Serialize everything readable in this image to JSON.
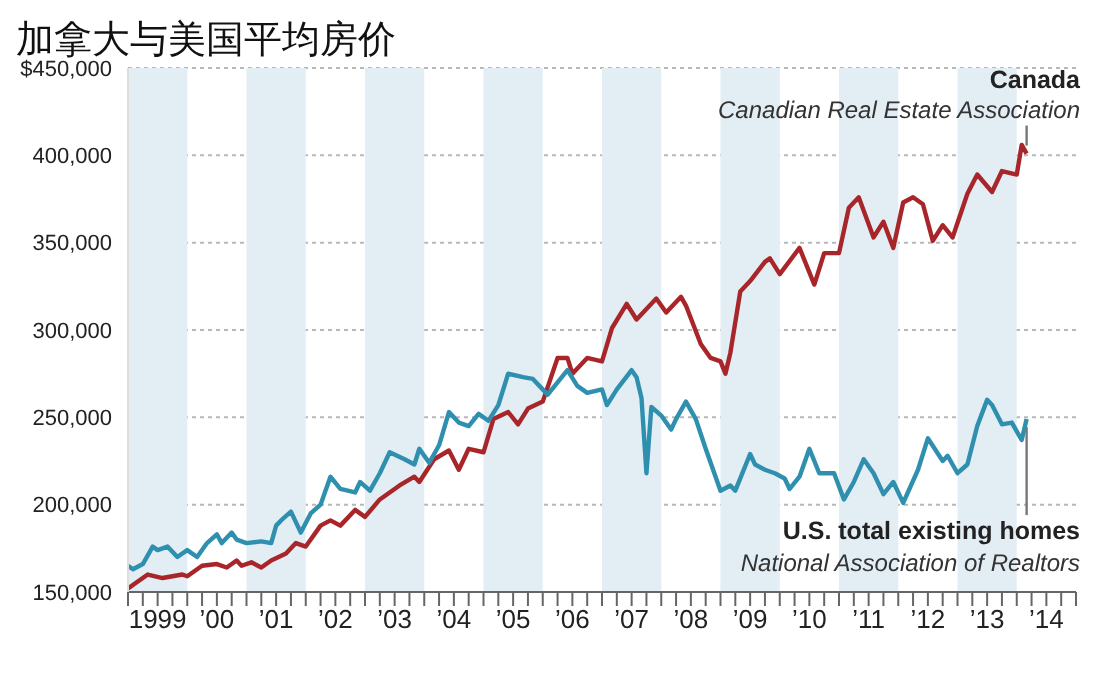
{
  "chart_data": {
    "type": "line",
    "title": "加拿大与美国平均房价",
    "xlim": [
      "1999",
      "2015"
    ],
    "xticks": [
      {
        "value": "1999",
        "label": null
      },
      {
        "value": "1999-04",
        "label": null
      },
      {
        "value": "1999-07",
        "label": "1999"
      },
      {
        "value": "1999-10",
        "label": null
      },
      {
        "value": "2000",
        "label": null
      },
      {
        "value": "2000-04",
        "label": null
      },
      {
        "value": "2000-07",
        "label": "’00"
      },
      {
        "value": "2000-10",
        "label": null
      },
      {
        "value": "2001",
        "label": null
      },
      {
        "value": "2001-04",
        "label": null
      },
      {
        "value": "2001-07",
        "label": "’01"
      },
      {
        "value": "2001-10",
        "label": null
      },
      {
        "value": "2002",
        "label": null
      },
      {
        "value": "2002-04",
        "label": null
      },
      {
        "value": "2002-07",
        "label": "’02"
      },
      {
        "value": "2002-10",
        "label": null
      },
      {
        "value": "2003",
        "label": null
      },
      {
        "value": "2003-04",
        "label": null
      },
      {
        "value": "2003-07",
        "label": "’03"
      },
      {
        "value": "2003-10",
        "label": null
      },
      {
        "value": "2004",
        "label": null
      },
      {
        "value": "2004-04",
        "label": null
      },
      {
        "value": "2004-07",
        "label": "’04"
      },
      {
        "value": "2004-10",
        "label": null
      },
      {
        "value": "2005",
        "label": null
      },
      {
        "value": "2005-04",
        "label": null
      },
      {
        "value": "2005-07",
        "label": "’05"
      },
      {
        "value": "2005-10",
        "label": null
      },
      {
        "value": "2006",
        "label": null
      },
      {
        "value": "2006-04",
        "label": null
      },
      {
        "value": "2006-07",
        "label": "’06"
      },
      {
        "value": "2006-10",
        "label": null
      },
      {
        "value": "2007",
        "label": null
      },
      {
        "value": "2007-04",
        "label": null
      },
      {
        "value": "2007-07",
        "label": "’07"
      },
      {
        "value": "2007-10",
        "label": null
      },
      {
        "value": "2008",
        "label": null
      },
      {
        "value": "2008-04",
        "label": null
      },
      {
        "value": "2008-07",
        "label": "’08"
      },
      {
        "value": "2008-10",
        "label": null
      },
      {
        "value": "2009",
        "label": null
      },
      {
        "value": "2009-04",
        "label": null
      },
      {
        "value": "2009-07",
        "label": "’09"
      },
      {
        "value": "2009-10",
        "label": null
      },
      {
        "value": "2010",
        "label": null
      },
      {
        "value": "2010-04",
        "label": null
      },
      {
        "value": "2010-07",
        "label": "’10"
      },
      {
        "value": "2010-10",
        "label": null
      },
      {
        "value": "2011",
        "label": null
      },
      {
        "value": "2011-04",
        "label": null
      },
      {
        "value": "2011-07",
        "label": "’11"
      },
      {
        "value": "2011-10",
        "label": null
      },
      {
        "value": "2012",
        "label": null
      },
      {
        "value": "2012-04",
        "label": null
      },
      {
        "value": "2012-07",
        "label": "’12"
      },
      {
        "value": "2012-10",
        "label": null
      },
      {
        "value": "2013",
        "label": null
      },
      {
        "value": "2013-04",
        "label": null
      },
      {
        "value": "2013-07",
        "label": "’13"
      },
      {
        "value": "2013-10",
        "label": null
      },
      {
        "value": "2014",
        "label": null
      },
      {
        "value": "2014-04",
        "label": null
      },
      {
        "value": "2014-07",
        "label": "’14"
      },
      {
        "value": "2014-10",
        "label": null
      },
      {
        "value": "2015",
        "label": null
      }
    ],
    "ylim": [
      150000,
      450000
    ],
    "yticks": [
      {
        "value": 150000,
        "label": "150,000"
      },
      {
        "value": 200000,
        "label": "200,000"
      },
      {
        "value": 250000,
        "label": "250,000"
      },
      {
        "value": 300000,
        "label": "300,000"
      },
      {
        "value": 350000,
        "label": "350,000"
      },
      {
        "value": 400000,
        "label": "400,000"
      },
      {
        "value": 450000,
        "label": "$450,000"
      }
    ],
    "grid": "y",
    "bands": [
      {
        "axis": "x",
        "from": "1999",
        "to": "2000",
        "color": "#e3edf4"
      },
      {
        "axis": "x",
        "from": "2001",
        "to": "2002",
        "color": "#e3edf4"
      },
      {
        "axis": "x",
        "from": "2003",
        "to": "2004",
        "color": "#e3edf4"
      },
      {
        "axis": "x",
        "from": "2005",
        "to": "2006",
        "color": "#e3edf4"
      },
      {
        "axis": "x",
        "from": "2007",
        "to": "2008",
        "color": "#e3edf4"
      },
      {
        "axis": "x",
        "from": "2009",
        "to": "2010",
        "color": "#e3edf4"
      },
      {
        "axis": "x",
        "from": "2011",
        "to": "2012",
        "color": "#e3edf4"
      },
      {
        "axis": "x",
        "from": "2013",
        "to": "2014",
        "color": "#e3edf4"
      }
    ],
    "annotations": [
      "Canadian Real Estate Association",
      "National Association of Realtors"
    ],
    "series": [
      {
        "name": "Canada",
        "color": "#a8262a",
        "x": [
          "1999-01",
          "1999-05",
          "1999-08",
          "1999-12",
          "2000-01",
          "2000-04",
          "2000-07",
          "2000-09",
          "2000-11",
          "2000-12",
          "2001-02",
          "2001-04",
          "2001-06",
          "2001-09",
          "2001-11",
          "2002-01",
          "2002-04",
          "2002-06",
          "2002-08",
          "2002-11",
          "2003-01",
          "2003-04",
          "2003-08",
          "2003-11",
          "2003-12",
          "2004-03",
          "2004-06",
          "2004-08",
          "2004-10",
          "2005-01",
          "2005-03",
          "2005-06",
          "2005-08",
          "2005-10",
          "2006-01",
          "2006-04",
          "2006-06",
          "2006-07",
          "2006-10",
          "2007-01",
          "2007-03",
          "2007-06",
          "2007-08",
          "2007-10",
          "2007-12",
          "2008-02",
          "2008-05",
          "2008-06",
          "2008-09",
          "2008-11",
          "2009-01",
          "2009-02",
          "2009-03",
          "2009-05",
          "2009-07",
          "2009-10",
          "2009-11",
          "2010-01",
          "2010-05",
          "2010-08",
          "2010-10",
          "2011-01",
          "2011-03",
          "2011-05",
          "2011-08",
          "2011-10",
          "2011-12",
          "2012-02",
          "2012-04",
          "2012-06",
          "2012-08",
          "2012-10",
          "2012-12",
          "2013-03",
          "2013-05",
          "2013-08",
          "2013-10",
          "2014-01",
          "2014-02",
          "2014-03"
        ],
        "values": [
          152000,
          160000,
          158000,
          160000,
          159000,
          165000,
          166000,
          164000,
          168000,
          165000,
          167000,
          164000,
          168000,
          172000,
          178000,
          176000,
          188000,
          191000,
          188000,
          197000,
          193000,
          203000,
          211000,
          216000,
          213000,
          226000,
          231000,
          220000,
          232000,
          230000,
          249000,
          253000,
          246000,
          255000,
          259000,
          284000,
          284000,
          275000,
          284000,
          282000,
          301000,
          315000,
          306000,
          312000,
          318000,
          310000,
          319000,
          314000,
          292000,
          284000,
          282000,
          275000,
          287000,
          322000,
          328000,
          339000,
          341000,
          332000,
          347000,
          326000,
          344000,
          344000,
          370000,
          376000,
          353000,
          362000,
          347000,
          373000,
          376000,
          372000,
          351000,
          360000,
          353000,
          378000,
          389000,
          379000,
          391000,
          389000,
          406000,
          401000
        ]
      },
      {
        "name": "U.S. total existing homes",
        "color": "#2f8fae",
        "x": [
          "1999-01",
          "1999-02",
          "1999-04",
          "1999-06",
          "1999-07",
          "1999-09",
          "1999-11",
          "1999-12",
          "2000-01",
          "2000-03",
          "2000-05",
          "2000-07",
          "2000-08",
          "2000-10",
          "2000-11",
          "2001-01",
          "2001-04",
          "2001-06",
          "2001-07",
          "2001-08",
          "2001-10",
          "2001-12",
          "2002-02",
          "2002-04",
          "2002-06",
          "2002-08",
          "2002-11",
          "2002-12",
          "2003-02",
          "2003-04",
          "2003-06",
          "2003-09",
          "2003-11",
          "2003-12",
          "2004-02",
          "2004-04",
          "2004-06",
          "2004-08",
          "2004-10",
          "2004-12",
          "2005-02",
          "2005-04",
          "2005-06",
          "2005-09",
          "2005-11",
          "2006-02",
          "2006-06",
          "2006-08",
          "2006-10",
          "2007-01",
          "2007-02",
          "2007-04",
          "2007-07",
          "2007-08",
          "2007-09",
          "2007-10",
          "2007-11",
          "2008-01",
          "2008-03",
          "2008-04",
          "2008-06",
          "2008-08",
          "2008-10",
          "2009-01",
          "2009-03",
          "2009-04",
          "2009-07",
          "2009-08",
          "2009-10",
          "2009-12",
          "2010-02",
          "2010-03",
          "2010-05",
          "2010-07",
          "2010-09",
          "2010-12",
          "2011-02",
          "2011-04",
          "2011-06",
          "2011-08",
          "2011-10",
          "2011-12",
          "2012-02",
          "2012-05",
          "2012-07",
          "2012-10",
          "2012-11",
          "2013-01",
          "2013-03",
          "2013-05",
          "2013-07",
          "2013-08",
          "2013-10",
          "2013-12",
          "2014-02",
          "2014-03"
        ],
        "values": [
          165000,
          163000,
          166000,
          176000,
          174000,
          176000,
          170000,
          172000,
          174000,
          170000,
          178000,
          183000,
          178000,
          184000,
          180000,
          178000,
          179000,
          178000,
          188000,
          191000,
          196000,
          184000,
          195000,
          200000,
          216000,
          209000,
          207000,
          213000,
          208000,
          218000,
          230000,
          226000,
          223000,
          232000,
          224000,
          234000,
          253000,
          247000,
          245000,
          252000,
          248000,
          257000,
          275000,
          273000,
          272000,
          263000,
          277000,
          268000,
          264000,
          266000,
          257000,
          266000,
          277000,
          273000,
          261000,
          218000,
          256000,
          251000,
          243000,
          249000,
          259000,
          249000,
          232000,
          208000,
          211000,
          208000,
          229000,
          223000,
          220000,
          218000,
          215000,
          209000,
          216000,
          232000,
          218000,
          218000,
          203000,
          213000,
          226000,
          218000,
          206000,
          213000,
          201000,
          220000,
          238000,
          225000,
          228000,
          218000,
          223000,
          245000,
          260000,
          257000,
          246000,
          247000,
          237000,
          249000
        ]
      }
    ]
  }
}
